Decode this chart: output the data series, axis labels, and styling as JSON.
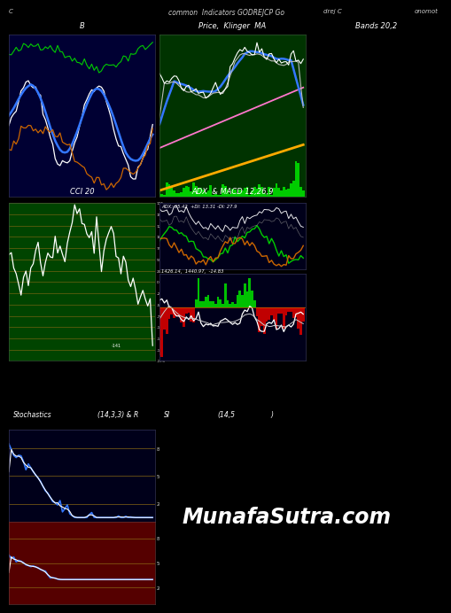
{
  "title": "common  Indicators GODREJCP Go",
  "title_left": "C",
  "title_mid_right": "drej C",
  "title_right": "onomot",
  "bg_color": "#000000",
  "panel1_bg": "#000033",
  "panel2_bg": "#003300",
  "panel3_bg": "#004400",
  "panel4_bg": "#00001a",
  "panel5_bg": "#00001a",
  "panel1_title": "B",
  "panel2_title": "Price,  Klinger  MA",
  "panel3_title": "Bands 20,2",
  "panel4_title": "CCI 20",
  "panel5_title": "ADX  & MACD 12,26,9",
  "panel5_subtitle": "ADX: 35.42  +DI: 13.31 -DI: 27.9",
  "macd_subtitle": "1426.14,  1440.97,  -14.83",
  "stoch_title": "Stochastics",
  "stoch_subtitle": "(14,3,3) & R",
  "si_title": "SI",
  "si_subtitle": "(14,5",
  "si_subtitle2": ")",
  "grid_color": "#8B6914",
  "cci_yticks": [
    175,
    150,
    125,
    100,
    75,
    50,
    25,
    0,
    -25,
    -50,
    -75,
    -100,
    -125,
    -150,
    -175
  ],
  "stoch_yticks_labels": [
    "80",
    "50",
    "20"
  ],
  "stoch_yticks_vals": [
    80,
    50,
    20
  ]
}
